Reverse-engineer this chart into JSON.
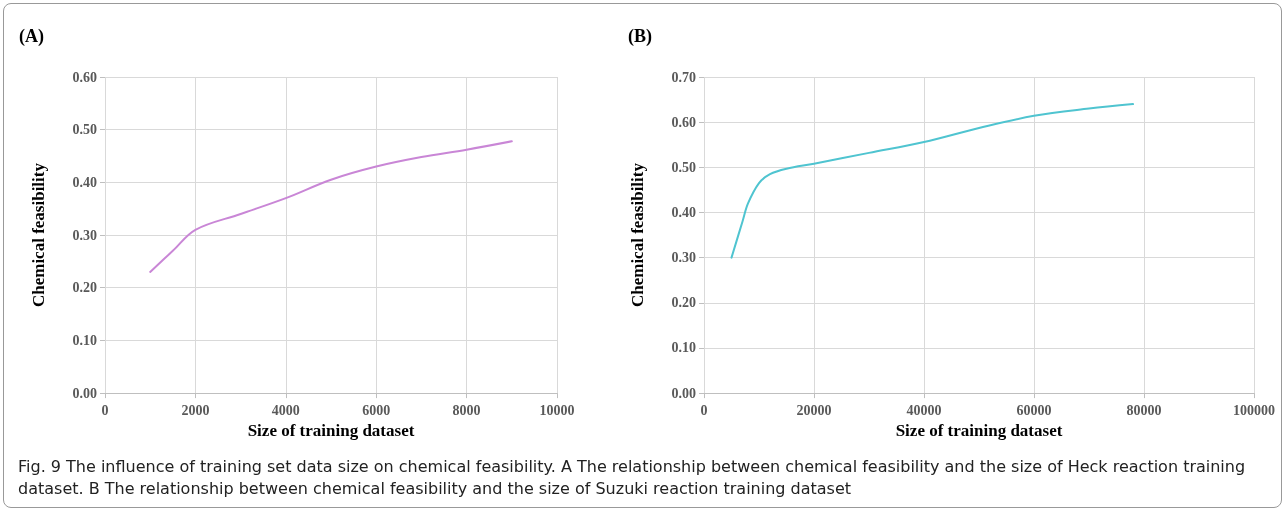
{
  "chart_data": [
    {
      "type": "line",
      "title": "(A)",
      "xlabel": "Size of training dataset",
      "ylabel": "Chemical feasibility",
      "x": [
        1000,
        1500,
        2000,
        3000,
        4000,
        5000,
        6000,
        7000,
        8000,
        9000
      ],
      "series": [
        {
          "color": "#c986d6",
          "values": [
            0.23,
            0.27,
            0.31,
            0.34,
            0.37,
            0.405,
            0.43,
            0.448,
            0.462,
            0.478
          ]
        }
      ],
      "xlim": [
        0,
        10000
      ],
      "xticks": [
        0,
        2000,
        4000,
        6000,
        8000,
        10000
      ],
      "ylim": [
        0,
        0.6
      ],
      "yticks": [
        {
          "value": 0,
          "label": "0.00"
        },
        {
          "value": 0.1,
          "label": "0.10"
        },
        {
          "value": 0.2,
          "label": "0.20"
        },
        {
          "value": 0.3,
          "label": "0.30"
        },
        {
          "value": 0.4,
          "label": "0.40"
        },
        {
          "value": 0.5,
          "label": "0.50"
        },
        {
          "value": 0.6,
          "label": "0.60"
        }
      ],
      "grid": true,
      "marker": "none",
      "line_style": "solid",
      "annotations": [
        "Fig. 9  The influence of training set data size on chemical feasibility. A The relationship between chemical feasibility and the size of Heck reaction training dataset. B The relationship between chemical feasibility and the size of Suzuki reaction training dataset"
      ]
    },
    {
      "type": "line",
      "title": "(B)",
      "xlabel": "Size of training dataset",
      "ylabel": "Chemical feasibility",
      "x": [
        5000,
        7000,
        8000,
        10000,
        12000,
        15000,
        20000,
        30000,
        40000,
        50000,
        60000,
        70000,
        78000
      ],
      "series": [
        {
          "color": "#4fc4d0",
          "values": [
            0.3,
            0.38,
            0.42,
            0.465,
            0.485,
            0.497,
            0.508,
            0.532,
            0.556,
            0.587,
            0.614,
            0.63,
            0.64
          ]
        }
      ],
      "xlim": [
        0,
        100000
      ],
      "xticks": [
        0,
        20000,
        40000,
        60000,
        80000,
        100000
      ],
      "ylim": [
        0,
        0.7
      ],
      "yticks": [
        {
          "value": 0,
          "label": "0.00"
        },
        {
          "value": 0.1,
          "label": "0.10"
        },
        {
          "value": 0.2,
          "label": "0.20"
        },
        {
          "value": 0.3,
          "label": "0.30"
        },
        {
          "value": 0.4,
          "label": "0.40"
        },
        {
          "value": 0.5,
          "label": "0.50"
        },
        {
          "value": 0.6,
          "label": "0.60"
        },
        {
          "value": 0.7,
          "label": "0.70"
        }
      ],
      "grid": true,
      "marker": "none",
      "line_style": "solid"
    }
  ]
}
